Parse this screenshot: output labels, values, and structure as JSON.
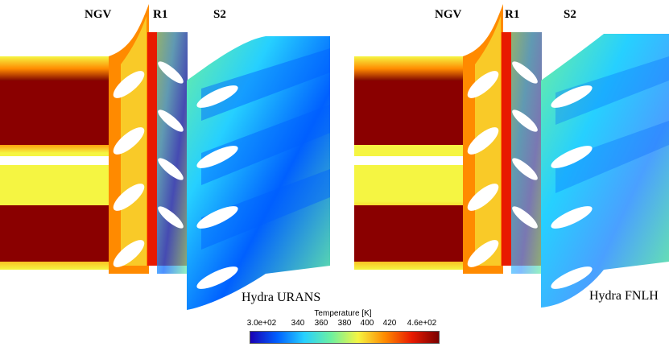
{
  "panels": [
    {
      "caption": "Hydra URANS",
      "labels": {
        "ngv": "NGV",
        "r1": "R1",
        "s2": "S2"
      }
    },
    {
      "caption": "Hydra FNLH",
      "labels": {
        "ngv": "NGV",
        "r1": "R1",
        "s2": "S2"
      }
    }
  ],
  "colorbar": {
    "title": "Temperature [K]",
    "ticks": [
      "3.0e+02",
      "340",
      "360",
      "380",
      "400",
      "420",
      "4.6e+02"
    ],
    "range": [
      300,
      460
    ],
    "colors": [
      "#1a00b4",
      "#0060ff",
      "#26d0ff",
      "#6cf0a0",
      "#f5f542",
      "#ff8a00",
      "#e81a00",
      "#7a0000"
    ]
  }
}
